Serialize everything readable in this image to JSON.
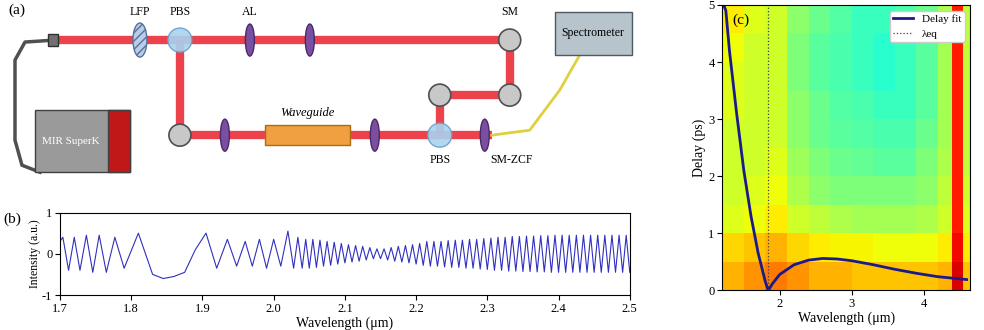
{
  "diagram": {
    "panel_label": "(a)",
    "labels": {
      "lfp": "LFP",
      "pbs_top": "PBS",
      "al": "AL",
      "sm": "SM",
      "spectrometer": "Spectrometer",
      "source": "MIR SuperK",
      "waveguide": "Waveguide",
      "pbs_bottom": "PBS",
      "fiber": "SM-ZCF"
    }
  },
  "chart_data": [
    {
      "type": "line",
      "panel_label": "(b)",
      "xlabel": "Wavelength (μm)",
      "ylabel": "Intensity (a.u.)",
      "color": "#3030c0",
      "x": [
        1.7,
        1.704,
        1.712,
        1.72,
        1.728,
        1.737,
        1.746,
        1.755,
        1.765,
        1.777,
        1.79,
        1.81,
        1.83,
        1.845,
        1.86,
        1.875,
        1.89,
        1.905,
        1.92,
        1.935,
        1.948,
        1.96,
        1.97,
        1.98,
        1.99,
        2.0,
        2.01,
        2.02,
        2.028,
        2.034,
        2.04,
        2.045,
        2.05,
        2.055,
        2.06,
        2.065,
        2.07,
        2.075,
        2.08,
        2.085,
        2.09,
        2.095,
        2.1,
        2.105,
        2.11,
        2.115,
        2.12,
        2.125,
        2.13,
        2.135,
        2.14,
        2.145,
        2.15,
        2.155,
        2.16,
        2.165,
        2.17,
        2.175,
        2.18,
        2.185,
        2.19,
        2.195,
        2.2,
        2.205,
        2.21,
        2.215,
        2.22,
        2.225,
        2.23,
        2.235,
        2.24,
        2.245,
        2.25,
        2.255,
        2.26,
        2.265,
        2.27,
        2.275,
        2.28,
        2.285,
        2.29,
        2.295,
        2.3,
        2.305,
        2.31,
        2.315,
        2.32,
        2.325,
        2.33,
        2.335,
        2.34,
        2.345,
        2.35,
        2.355,
        2.36,
        2.365,
        2.37,
        2.375,
        2.38,
        2.385,
        2.39,
        2.395,
        2.4,
        2.405,
        2.41,
        2.415,
        2.42,
        2.425,
        2.43,
        2.435,
        2.44,
        2.445,
        2.45,
        2.455,
        2.46,
        2.465,
        2.47,
        2.475,
        2.48,
        2.485,
        2.49,
        2.495,
        2.5
      ],
      "values": [
        0.3,
        0.4,
        -0.4,
        0.4,
        -0.4,
        0.45,
        -0.45,
        0.45,
        -0.45,
        0.4,
        -0.35,
        0.5,
        -0.5,
        -0.6,
        -0.55,
        -0.45,
        0.1,
        0.5,
        -0.35,
        0.35,
        -0.3,
        0.3,
        -0.3,
        0.35,
        -0.35,
        0.35,
        -0.3,
        0.55,
        -0.35,
        0.4,
        -0.35,
        0.35,
        -0.35,
        0.35,
        -0.33,
        0.33,
        -0.3,
        0.3,
        -0.28,
        0.28,
        -0.25,
        0.25,
        -0.22,
        0.22,
        -0.2,
        0.2,
        -0.18,
        0.18,
        -0.15,
        0.15,
        -0.12,
        0.12,
        -0.12,
        0.12,
        -0.15,
        0.15,
        -0.18,
        0.18,
        -0.2,
        0.2,
        -0.22,
        0.22,
        -0.25,
        0.25,
        -0.28,
        0.3,
        -0.3,
        0.3,
        -0.3,
        0.3,
        -0.32,
        0.32,
        -0.33,
        0.33,
        -0.33,
        0.33,
        -0.35,
        0.35,
        -0.35,
        0.35,
        -0.37,
        0.37,
        -0.38,
        0.38,
        -0.4,
        0.4,
        -0.4,
        0.4,
        -0.42,
        0.42,
        -0.42,
        0.42,
        -0.43,
        0.43,
        -0.43,
        0.43,
        -0.44,
        0.44,
        -0.44,
        0.44,
        -0.45,
        0.45,
        -0.45,
        0.45,
        -0.45,
        0.45,
        -0.45,
        0.45,
        -0.45,
        0.45,
        -0.45,
        0.45,
        -0.45,
        0.45,
        -0.45,
        0.45,
        -0.45,
        0.45,
        -0.45,
        0.45,
        -0.45,
        0.45,
        -0.45
      ],
      "xlim": [
        1.7,
        2.5
      ],
      "ylim": [
        -1,
        1
      ],
      "xticks": [
        1.7,
        1.8,
        1.9,
        2.0,
        2.1,
        2.2,
        2.3,
        2.4,
        2.5
      ],
      "yticks": [
        -1,
        0,
        1
      ]
    },
    {
      "type": "heatmap",
      "panel_label": "(c)",
      "xlabel": "Wavelength (μm)",
      "ylabel": "Delay (ps)",
      "x_edges": [
        1.2,
        1.5,
        1.8,
        2.1,
        2.4,
        2.7,
        3.0,
        3.3,
        3.6,
        3.9,
        4.2,
        4.4,
        4.55,
        4.65
      ],
      "y_edges": [
        0,
        0.5,
        1,
        1.5,
        2,
        2.5,
        3,
        3.5,
        4,
        4.5,
        5
      ],
      "cells": [
        [
          0.72,
          0.75,
          0.78,
          0.75,
          0.72,
          0.72,
          0.7,
          0.7,
          0.7,
          0.7,
          0.72,
          0.92,
          0.7
        ],
        [
          0.68,
          0.7,
          0.72,
          0.68,
          0.66,
          0.65,
          0.65,
          0.64,
          0.64,
          0.64,
          0.66,
          0.9,
          0.66
        ],
        [
          0.62,
          0.64,
          0.66,
          0.6,
          0.58,
          0.56,
          0.55,
          0.55,
          0.55,
          0.56,
          0.6,
          0.88,
          0.62
        ],
        [
          0.6,
          0.62,
          0.64,
          0.56,
          0.52,
          0.5,
          0.5,
          0.5,
          0.5,
          0.52,
          0.58,
          0.88,
          0.6
        ],
        [
          0.6,
          0.6,
          0.62,
          0.54,
          0.5,
          0.48,
          0.47,
          0.46,
          0.46,
          0.5,
          0.56,
          0.88,
          0.58
        ],
        [
          0.6,
          0.6,
          0.6,
          0.52,
          0.48,
          0.46,
          0.45,
          0.44,
          0.44,
          0.48,
          0.55,
          0.88,
          0.58
        ],
        [
          0.62,
          0.6,
          0.6,
          0.52,
          0.48,
          0.45,
          0.44,
          0.42,
          0.42,
          0.46,
          0.55,
          0.88,
          0.58
        ],
        [
          0.62,
          0.6,
          0.6,
          0.5,
          0.46,
          0.44,
          0.42,
          0.4,
          0.42,
          0.46,
          0.55,
          0.88,
          0.58
        ],
        [
          0.64,
          0.6,
          0.6,
          0.5,
          0.46,
          0.44,
          0.42,
          0.4,
          0.42,
          0.46,
          0.55,
          0.88,
          0.58
        ],
        [
          0.66,
          0.62,
          0.6,
          0.52,
          0.48,
          0.45,
          0.42,
          0.42,
          0.44,
          0.48,
          0.56,
          0.88,
          0.58
        ]
      ],
      "zlim": [
        0,
        1
      ],
      "series": [
        {
          "name": "Delay fit",
          "type": "line",
          "color": "#1a1a8c",
          "line_style": "solid",
          "x": [
            1.22,
            1.25,
            1.3,
            1.4,
            1.5,
            1.6,
            1.7,
            1.8,
            1.84,
            1.9,
            2.0,
            2.2,
            2.4,
            2.6,
            2.8,
            3.0,
            3.3,
            3.6,
            3.9,
            4.2,
            4.6
          ],
          "values": [
            5.0,
            4.9,
            4.2,
            3.1,
            2.1,
            1.3,
            0.65,
            0.15,
            0.0,
            0.12,
            0.28,
            0.45,
            0.53,
            0.56,
            0.55,
            0.52,
            0.45,
            0.37,
            0.3,
            0.24,
            0.19
          ]
        },
        {
          "name": "λeq",
          "type": "vline",
          "color": "#404040",
          "line_style": "dotted",
          "x": [
            1.84
          ]
        }
      ],
      "legend": "upper right",
      "xlim": [
        1.2,
        4.65
      ],
      "ylim": [
        0,
        5
      ],
      "xticks": [
        2,
        3,
        4
      ],
      "yticks": [
        0,
        1,
        2,
        3,
        4,
        5
      ]
    }
  ]
}
